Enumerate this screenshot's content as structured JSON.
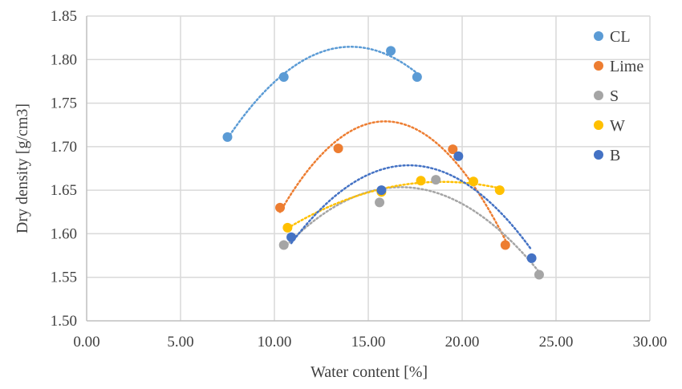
{
  "chart_data": {
    "type": "scatter",
    "xlabel": "Water content [%]",
    "ylabel": "Dry density [g/cm3]",
    "xlim": [
      0,
      30
    ],
    "ylim": [
      1.5,
      1.85
    ],
    "x_ticks": [
      0,
      5,
      10,
      15,
      20,
      25,
      30
    ],
    "x_tick_labels": [
      "0.00",
      "5.00",
      "10.00",
      "15.00",
      "20.00",
      "25.00",
      "30.00"
    ],
    "y_ticks": [
      1.5,
      1.55,
      1.6,
      1.65,
      1.7,
      1.75,
      1.8,
      1.85
    ],
    "y_tick_labels": [
      "1.50",
      "1.55",
      "1.60",
      "1.65",
      "1.70",
      "1.75",
      "1.80",
      "1.85"
    ],
    "grid": true,
    "legend_position": "right",
    "trendline": "polynomial order 2 (dotted)",
    "series": [
      {
        "name": "CL",
        "color": "#5b9bd5",
        "points": [
          [
            7.5,
            1.711
          ],
          [
            10.5,
            1.78
          ],
          [
            16.2,
            1.81
          ],
          [
            17.6,
            1.78
          ]
        ]
      },
      {
        "name": "Lime",
        "color": "#ed7d31",
        "points": [
          [
            10.3,
            1.63
          ],
          [
            13.4,
            1.698
          ],
          [
            19.5,
            1.697
          ],
          [
            22.3,
            1.587
          ]
        ]
      },
      {
        "name": "S",
        "color": "#a5a5a5",
        "points": [
          [
            10.5,
            1.587
          ],
          [
            15.6,
            1.636
          ],
          [
            18.6,
            1.662
          ],
          [
            24.1,
            1.553
          ]
        ]
      },
      {
        "name": "W",
        "color": "#ffc000",
        "points": [
          [
            10.7,
            1.607
          ],
          [
            15.7,
            1.648
          ],
          [
            17.8,
            1.661
          ],
          [
            20.6,
            1.66
          ],
          [
            22.0,
            1.65
          ]
        ]
      },
      {
        "name": "B",
        "color": "#4472c4",
        "points": [
          [
            10.9,
            1.596
          ],
          [
            15.7,
            1.65
          ],
          [
            19.8,
            1.689
          ],
          [
            23.7,
            1.572
          ]
        ]
      }
    ]
  }
}
